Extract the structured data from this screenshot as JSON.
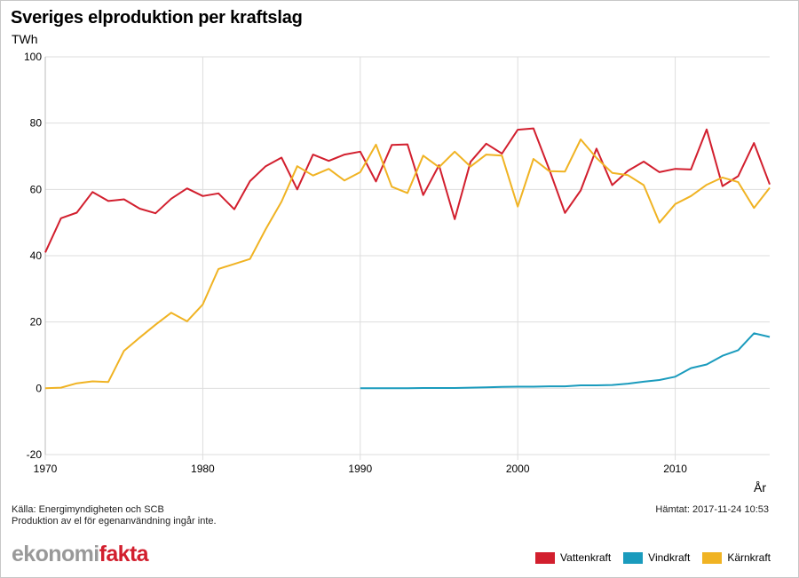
{
  "chart_data": {
    "type": "line",
    "title": "Sveriges elproduktion per kraftslag",
    "ylabel": "TWh",
    "xlabel": "År",
    "ylim": [
      -20,
      100
    ],
    "xlim": [
      1970,
      2016
    ],
    "yticks": [
      -20,
      0,
      20,
      40,
      60,
      80,
      100
    ],
    "xticks": [
      1970,
      1980,
      1990,
      2000,
      2010
    ],
    "grid": true,
    "series": [
      {
        "name": "Vattenkraft",
        "color": "#d21f2e",
        "x": [
          1970,
          1971,
          1972,
          1973,
          1974,
          1975,
          1976,
          1977,
          1978,
          1979,
          1980,
          1981,
          1982,
          1983,
          1984,
          1985,
          1986,
          1987,
          1988,
          1989,
          1990,
          1991,
          1992,
          1993,
          1994,
          1995,
          1996,
          1997,
          1998,
          1999,
          2000,
          2001,
          2002,
          2003,
          2004,
          2005,
          2006,
          2007,
          2008,
          2009,
          2010,
          2011,
          2012,
          2013,
          2014,
          2015,
          2016
        ],
        "values": [
          41,
          51.3,
          53,
          59.2,
          56.5,
          57,
          54.2,
          52.8,
          57.2,
          60.3,
          58,
          58.8,
          54,
          62.5,
          67,
          69.6,
          60,
          70.5,
          68.6,
          70.5,
          71.4,
          62.4,
          73.4,
          73.6,
          58.3,
          67.3,
          51,
          68.3,
          73.8,
          70.8,
          78,
          78.4,
          66,
          52.9,
          59.7,
          72.3,
          61.3,
          65.6,
          68.4,
          65.2,
          66.2,
          66,
          78.1,
          61,
          64,
          74,
          61.5
        ]
      },
      {
        "name": "Vindkraft",
        "color": "#1a9bbd",
        "x": [
          1990,
          1991,
          1992,
          1993,
          1994,
          1995,
          1996,
          1997,
          1998,
          1999,
          2000,
          2001,
          2002,
          2003,
          2004,
          2005,
          2006,
          2007,
          2008,
          2009,
          2010,
          2011,
          2012,
          2013,
          2014,
          2015,
          2016
        ],
        "values": [
          0,
          0,
          0,
          0,
          0.1,
          0.1,
          0.1,
          0.2,
          0.3,
          0.4,
          0.5,
          0.5,
          0.6,
          0.6,
          0.9,
          0.9,
          1,
          1.4,
          2,
          2.5,
          3.5,
          6.1,
          7.2,
          9.8,
          11.5,
          16.6,
          15.5
        ]
      },
      {
        "name": "Kärnkraft",
        "color": "#f0b323",
        "x": [
          1970,
          1971,
          1972,
          1973,
          1974,
          1975,
          1976,
          1977,
          1978,
          1979,
          1980,
          1981,
          1982,
          1983,
          1984,
          1985,
          1986,
          1987,
          1988,
          1989,
          1990,
          1991,
          1992,
          1993,
          1994,
          1995,
          1996,
          1997,
          1998,
          1999,
          2000,
          2001,
          2002,
          2003,
          2004,
          2005,
          2006,
          2007,
          2008,
          2009,
          2010,
          2011,
          2012,
          2013,
          2014,
          2015,
          2016
        ],
        "values": [
          0,
          0.2,
          1.5,
          2.1,
          1.9,
          11.3,
          15.3,
          19.2,
          22.8,
          20.2,
          25.3,
          36,
          37.5,
          39,
          48,
          56.3,
          67,
          64.2,
          66.2,
          62.7,
          65.2,
          73.5,
          60.8,
          58.9,
          70.2,
          66.7,
          71.4,
          66.9,
          70.5,
          70.2,
          54.8,
          69.2,
          65.5,
          65.4,
          75.1,
          69.5,
          65,
          64.3,
          61.3,
          50,
          55.6,
          58,
          61.4,
          63.6,
          62.2,
          54.4,
          60.5
        ]
      }
    ]
  },
  "texts": {
    "title": "Sveriges elproduktion per kraftslag",
    "unit": "TWh",
    "xaxis_label": "År",
    "source": "Källa: Energimyndigheten och SCB",
    "note": "Produktion av el för egenanvändning ingår inte.",
    "fetched": "Hämtat: 2017-11-24 10:53",
    "logo_part1": "ekonomi",
    "logo_part2": "fakta"
  },
  "legend": [
    {
      "label": "Vattenkraft",
      "color": "#d21f2e"
    },
    {
      "label": "Vindkraft",
      "color": "#1a9bbd"
    },
    {
      "label": "Kärnkraft",
      "color": "#f0b323"
    }
  ]
}
